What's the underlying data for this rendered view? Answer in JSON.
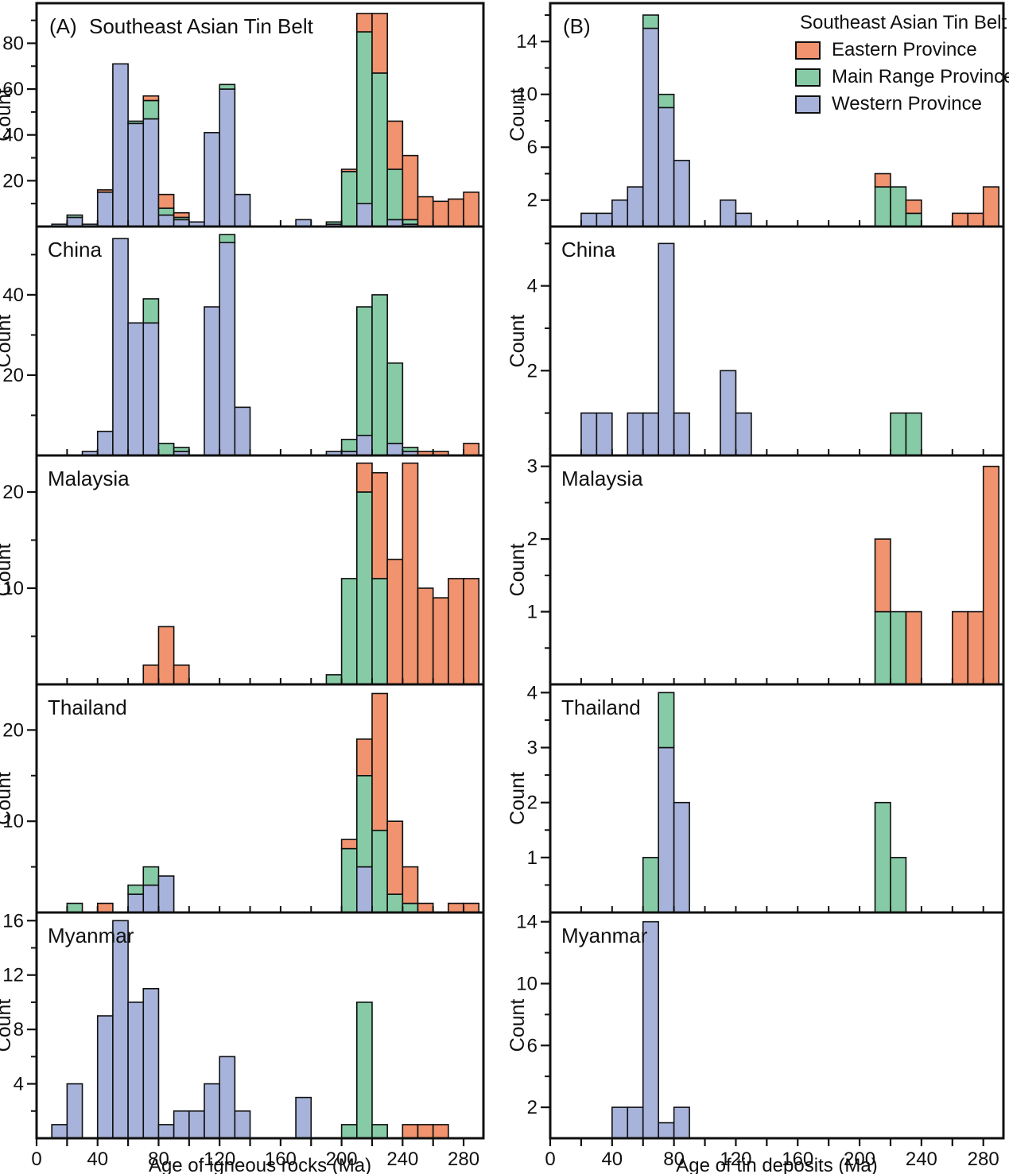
{
  "figure": {
    "y_axis_label": "Count",
    "x_axis": {
      "left_title": "Age of igneous rocks (Ma)",
      "right_title": "Age of tin deposits (Ma)",
      "tick_labels": [
        0,
        40,
        80,
        120,
        160,
        200,
        240,
        280
      ],
      "minor_step": 20,
      "max": 293,
      "bin_width": 10
    }
  },
  "colors": {
    "eastern": "#F0936E",
    "main_range": "#86CBA6",
    "western": "#A7B3DA",
    "outline": "#101010",
    "text": "#101010"
  },
  "legend": {
    "title": "Southeast Asian Tin Belt",
    "items": [
      {
        "key": "eastern",
        "label": "Eastern Province"
      },
      {
        "key": "main_range",
        "label": "Main Range Province"
      },
      {
        "key": "western",
        "label": "Western Province"
      }
    ]
  },
  "chart_data": [
    {
      "id": "A1",
      "type": "bar",
      "side": "A",
      "row": 0,
      "tag": "(A)",
      "title": "Southeast Asian Tin Belt",
      "xlabel": "Age of igneous rocks (Ma)",
      "ylabel": "Count",
      "ymax": 97.5,
      "yticks": [
        20,
        40,
        60,
        80
      ],
      "yminor": [
        10,
        30,
        50,
        70,
        90
      ],
      "bars": [
        {
          "x": 10,
          "western": 1
        },
        {
          "x": 20,
          "western": 4,
          "main_range": 1
        },
        {
          "x": 30,
          "western": 1
        },
        {
          "x": 40,
          "western": 15,
          "eastern": 1
        },
        {
          "x": 50,
          "western": 71
        },
        {
          "x": 60,
          "western": 45,
          "main_range": 1
        },
        {
          "x": 70,
          "western": 47,
          "main_range": 8,
          "eastern": 2
        },
        {
          "x": 80,
          "western": 5,
          "main_range": 3,
          "eastern": 6
        },
        {
          "x": 90,
          "western": 3,
          "main_range": 1,
          "eastern": 2
        },
        {
          "x": 100,
          "western": 2
        },
        {
          "x": 110,
          "western": 41
        },
        {
          "x": 120,
          "western": 60,
          "main_range": 2
        },
        {
          "x": 130,
          "western": 14
        },
        {
          "x": 170,
          "western": 3
        },
        {
          "x": 190,
          "western": 1,
          "main_range": 1
        },
        {
          "x": 200,
          "main_range": 24,
          "eastern": 1
        },
        {
          "x": 210,
          "western": 10,
          "main_range": 75,
          "eastern": 8
        },
        {
          "x": 220,
          "main_range": 67,
          "eastern": 26
        },
        {
          "x": 230,
          "western": 3,
          "main_range": 22,
          "eastern": 21
        },
        {
          "x": 240,
          "western": 1,
          "main_range": 2,
          "eastern": 28
        },
        {
          "x": 250,
          "eastern": 13
        },
        {
          "x": 260,
          "eastern": 11
        },
        {
          "x": 270,
          "eastern": 12
        },
        {
          "x": 280,
          "eastern": 15
        }
      ]
    },
    {
      "id": "A2",
      "type": "bar",
      "side": "A",
      "row": 1,
      "tag": null,
      "title": "China",
      "ymax": 57,
      "yticks": [
        20,
        40
      ],
      "yminor": [
        10,
        30,
        50
      ],
      "bars": [
        {
          "x": 30,
          "western": 1
        },
        {
          "x": 40,
          "western": 6
        },
        {
          "x": 50,
          "western": 54
        },
        {
          "x": 60,
          "western": 33
        },
        {
          "x": 70,
          "western": 33,
          "main_range": 6
        },
        {
          "x": 80,
          "main_range": 3
        },
        {
          "x": 90,
          "western": 1,
          "main_range": 1
        },
        {
          "x": 110,
          "western": 37
        },
        {
          "x": 120,
          "western": 53,
          "main_range": 2
        },
        {
          "x": 130,
          "western": 12
        },
        {
          "x": 190,
          "western": 1
        },
        {
          "x": 200,
          "western": 1,
          "main_range": 3
        },
        {
          "x": 210,
          "western": 5,
          "main_range": 32
        },
        {
          "x": 220,
          "main_range": 40
        },
        {
          "x": 230,
          "western": 3,
          "main_range": 20
        },
        {
          "x": 240,
          "western": 1,
          "main_range": 1
        },
        {
          "x": 250,
          "eastern": 1
        },
        {
          "x": 260,
          "eastern": 1
        },
        {
          "x": 280,
          "eastern": 3
        }
      ]
    },
    {
      "id": "A3",
      "type": "bar",
      "side": "A",
      "row": 2,
      "tag": null,
      "title": "Malaysia",
      "ymax": 23.8,
      "yticks": [
        10,
        20
      ],
      "yminor": [
        5,
        15
      ],
      "bars": [
        {
          "x": 70,
          "eastern": 2
        },
        {
          "x": 80,
          "eastern": 6
        },
        {
          "x": 90,
          "eastern": 2
        },
        {
          "x": 190,
          "main_range": 1
        },
        {
          "x": 200,
          "main_range": 11
        },
        {
          "x": 210,
          "main_range": 20,
          "eastern": 3
        },
        {
          "x": 220,
          "main_range": 11,
          "eastern": 11
        },
        {
          "x": 230,
          "eastern": 13
        },
        {
          "x": 240,
          "eastern": 23
        },
        {
          "x": 250,
          "eastern": 10
        },
        {
          "x": 260,
          "eastern": 9
        },
        {
          "x": 270,
          "eastern": 11
        },
        {
          "x": 280,
          "eastern": 11
        }
      ]
    },
    {
      "id": "A4",
      "type": "bar",
      "side": "A",
      "row": 3,
      "tag": null,
      "title": "Thailand",
      "ymax": 25,
      "yticks": [
        10,
        20
      ],
      "yminor": [
        5,
        15
      ],
      "bars": [
        {
          "x": 20,
          "main_range": 1
        },
        {
          "x": 40,
          "eastern": 1
        },
        {
          "x": 60,
          "western": 2,
          "main_range": 1
        },
        {
          "x": 70,
          "western": 3,
          "main_range": 2
        },
        {
          "x": 80,
          "western": 4
        },
        {
          "x": 200,
          "main_range": 7,
          "eastern": 1
        },
        {
          "x": 210,
          "western": 5,
          "main_range": 10,
          "eastern": 4
        },
        {
          "x": 220,
          "main_range": 9,
          "eastern": 15
        },
        {
          "x": 230,
          "main_range": 2,
          "eastern": 8
        },
        {
          "x": 240,
          "main_range": 1,
          "eastern": 4
        },
        {
          "x": 250,
          "eastern": 1
        },
        {
          "x": 270,
          "eastern": 1
        },
        {
          "x": 280,
          "eastern": 1
        }
      ]
    },
    {
      "id": "A5",
      "type": "bar",
      "side": "A",
      "row": 4,
      "tag": null,
      "title": "Myanmar",
      "ymax": 16.6,
      "yticks": [
        4,
        8,
        12,
        16
      ],
      "yminor": [
        2,
        6,
        10,
        14
      ],
      "bars": [
        {
          "x": 10,
          "western": 1
        },
        {
          "x": 20,
          "western": 4
        },
        {
          "x": 40,
          "western": 9
        },
        {
          "x": 50,
          "western": 16
        },
        {
          "x": 60,
          "western": 10
        },
        {
          "x": 70,
          "western": 11
        },
        {
          "x": 80,
          "western": 1
        },
        {
          "x": 90,
          "western": 2
        },
        {
          "x": 100,
          "western": 2
        },
        {
          "x": 110,
          "western": 4
        },
        {
          "x": 120,
          "western": 6
        },
        {
          "x": 130,
          "western": 2
        },
        {
          "x": 170,
          "western": 3
        },
        {
          "x": 200,
          "main_range": 1
        },
        {
          "x": 210,
          "main_range": 10
        },
        {
          "x": 220,
          "main_range": 1
        },
        {
          "x": 240,
          "eastern": 1
        },
        {
          "x": 250,
          "eastern": 1
        },
        {
          "x": 260,
          "eastern": 1
        }
      ]
    },
    {
      "id": "B1",
      "type": "bar",
      "side": "B",
      "row": 0,
      "tag": "(B)",
      "title": null,
      "xlabel": "Age of tin deposits (Ma)",
      "ylabel": "Count",
      "ymax": 16.9,
      "yticks": [
        2,
        6,
        10,
        14
      ],
      "yminor": [
        4,
        8,
        12,
        16
      ],
      "bars": [
        {
          "x": 20,
          "western": 1
        },
        {
          "x": 30,
          "western": 1
        },
        {
          "x": 40,
          "western": 2
        },
        {
          "x": 50,
          "western": 3
        },
        {
          "x": 60,
          "western": 15,
          "main_range": 1
        },
        {
          "x": 70,
          "western": 9,
          "main_range": 1
        },
        {
          "x": 80,
          "western": 5
        },
        {
          "x": 110,
          "western": 2
        },
        {
          "x": 120,
          "western": 1
        },
        {
          "x": 210,
          "main_range": 3,
          "eastern": 1
        },
        {
          "x": 220,
          "main_range": 3
        },
        {
          "x": 230,
          "main_range": 1,
          "eastern": 1
        },
        {
          "x": 260,
          "eastern": 1
        },
        {
          "x": 270,
          "eastern": 1
        },
        {
          "x": 280,
          "eastern": 3
        }
      ]
    },
    {
      "id": "B2",
      "type": "bar",
      "side": "B",
      "row": 1,
      "tag": null,
      "title": "China",
      "ymax": 5.4,
      "yticks": [
        2,
        4
      ],
      "yminor": [
        1,
        3,
        5
      ],
      "bars": [
        {
          "x": 20,
          "western": 1
        },
        {
          "x": 30,
          "western": 1
        },
        {
          "x": 50,
          "western": 1
        },
        {
          "x": 60,
          "western": 1
        },
        {
          "x": 70,
          "western": 5
        },
        {
          "x": 80,
          "western": 1
        },
        {
          "x": 110,
          "western": 2
        },
        {
          "x": 120,
          "western": 1
        },
        {
          "x": 220,
          "main_range": 1
        },
        {
          "x": 230,
          "main_range": 1
        }
      ]
    },
    {
      "id": "B3",
      "type": "bar",
      "side": "B",
      "row": 2,
      "tag": null,
      "title": "Malaysia",
      "ymax": 3.15,
      "yticks": [
        1,
        2,
        3
      ],
      "yminor": [
        0.5,
        1.5,
        2.5
      ],
      "bars": [
        {
          "x": 210,
          "main_range": 1,
          "eastern": 1
        },
        {
          "x": 220,
          "main_range": 1
        },
        {
          "x": 230,
          "eastern": 1
        },
        {
          "x": 260,
          "eastern": 1
        },
        {
          "x": 270,
          "eastern": 1
        },
        {
          "x": 280,
          "eastern": 3
        }
      ]
    },
    {
      "id": "B4",
      "type": "bar",
      "side": "B",
      "row": 3,
      "tag": null,
      "title": "Thailand",
      "ymax": 4.15,
      "yticks": [
        1,
        2,
        3,
        4
      ],
      "yminor": [
        0.5,
        1.5,
        2.5,
        3.5
      ],
      "bars": [
        {
          "x": 60,
          "main_range": 1
        },
        {
          "x": 70,
          "western": 3,
          "main_range": 1
        },
        {
          "x": 80,
          "western": 2
        },
        {
          "x": 210,
          "main_range": 2
        },
        {
          "x": 220,
          "main_range": 1
        }
      ]
    },
    {
      "id": "B5",
      "type": "bar",
      "side": "B",
      "row": 4,
      "tag": null,
      "title": "Myanmar",
      "ymax": 14.6,
      "yticks": [
        2,
        6,
        10,
        14
      ],
      "yminor": [
        4,
        8,
        12
      ],
      "bars": [
        {
          "x": 40,
          "western": 2
        },
        {
          "x": 50,
          "western": 2
        },
        {
          "x": 60,
          "western": 14
        },
        {
          "x": 70,
          "western": 1
        },
        {
          "x": 80,
          "western": 2
        }
      ]
    }
  ]
}
